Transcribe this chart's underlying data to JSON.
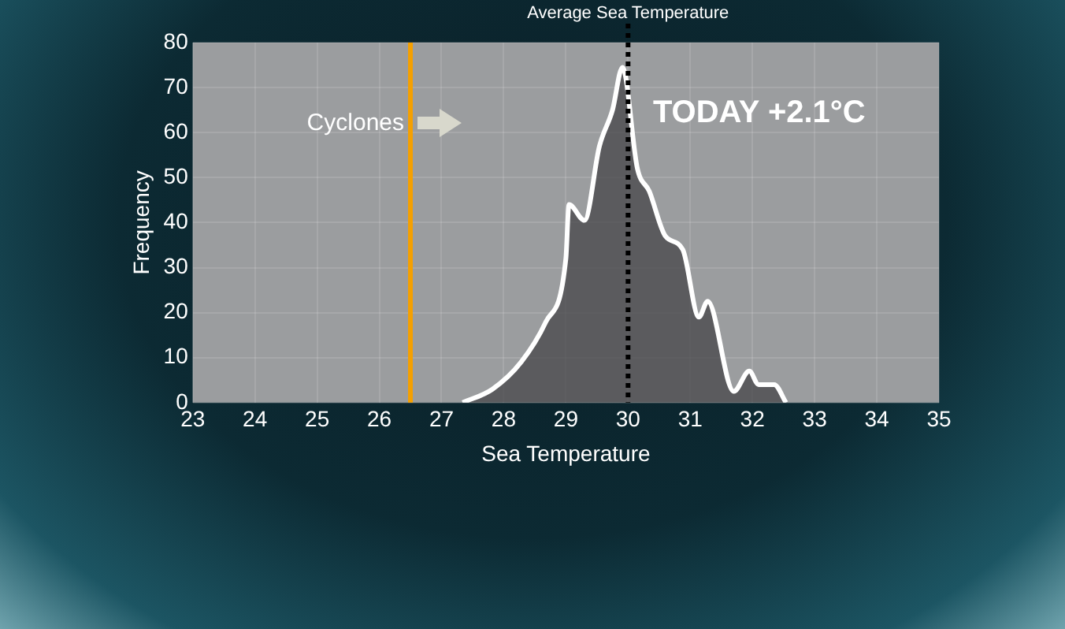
{
  "chart_data": {
    "type": "area",
    "xlabel": "Sea Temperature",
    "ylabel": "Frequency",
    "x": [
      27.34,
      27.82,
      28.28,
      28.68,
      29.0,
      29.05,
      29.3,
      29.54,
      29.75,
      29.91,
      30.15,
      30.34,
      30.6,
      30.88,
      31.14,
      31.28,
      31.7,
      31.95,
      32.1,
      32.35,
      32.54
    ],
    "series": [
      {
        "color": "#ffffff",
        "values": [
          0,
          3,
          9,
          18,
          32,
          44,
          40.5,
          57,
          65,
          74.5,
          52,
          47,
          37,
          34,
          19,
          22.5,
          2.5,
          7,
          4,
          4,
          0
        ]
      }
    ],
    "xlim": [
      23,
      35
    ],
    "xticks": [
      23,
      24,
      25,
      26,
      27,
      28,
      29,
      30,
      31,
      32,
      33,
      34,
      35
    ],
    "ylim": [
      0,
      80
    ],
    "yticks": [
      0,
      10,
      20,
      30,
      40,
      50,
      60,
      70,
      80
    ],
    "grid": true,
    "marker": "none",
    "line_style": "solid",
    "ref_lines": [
      {
        "axis": "x",
        "value": 26.5,
        "label": "Cyclones",
        "color": "#f5a000",
        "line_style": "solid"
      },
      {
        "axis": "x",
        "value": 30,
        "label": "Average Sea Temperature",
        "color": "#000000",
        "line_style": "dotted"
      }
    ],
    "annotations": [
      "TODAY +2.1°C"
    ]
  }
}
